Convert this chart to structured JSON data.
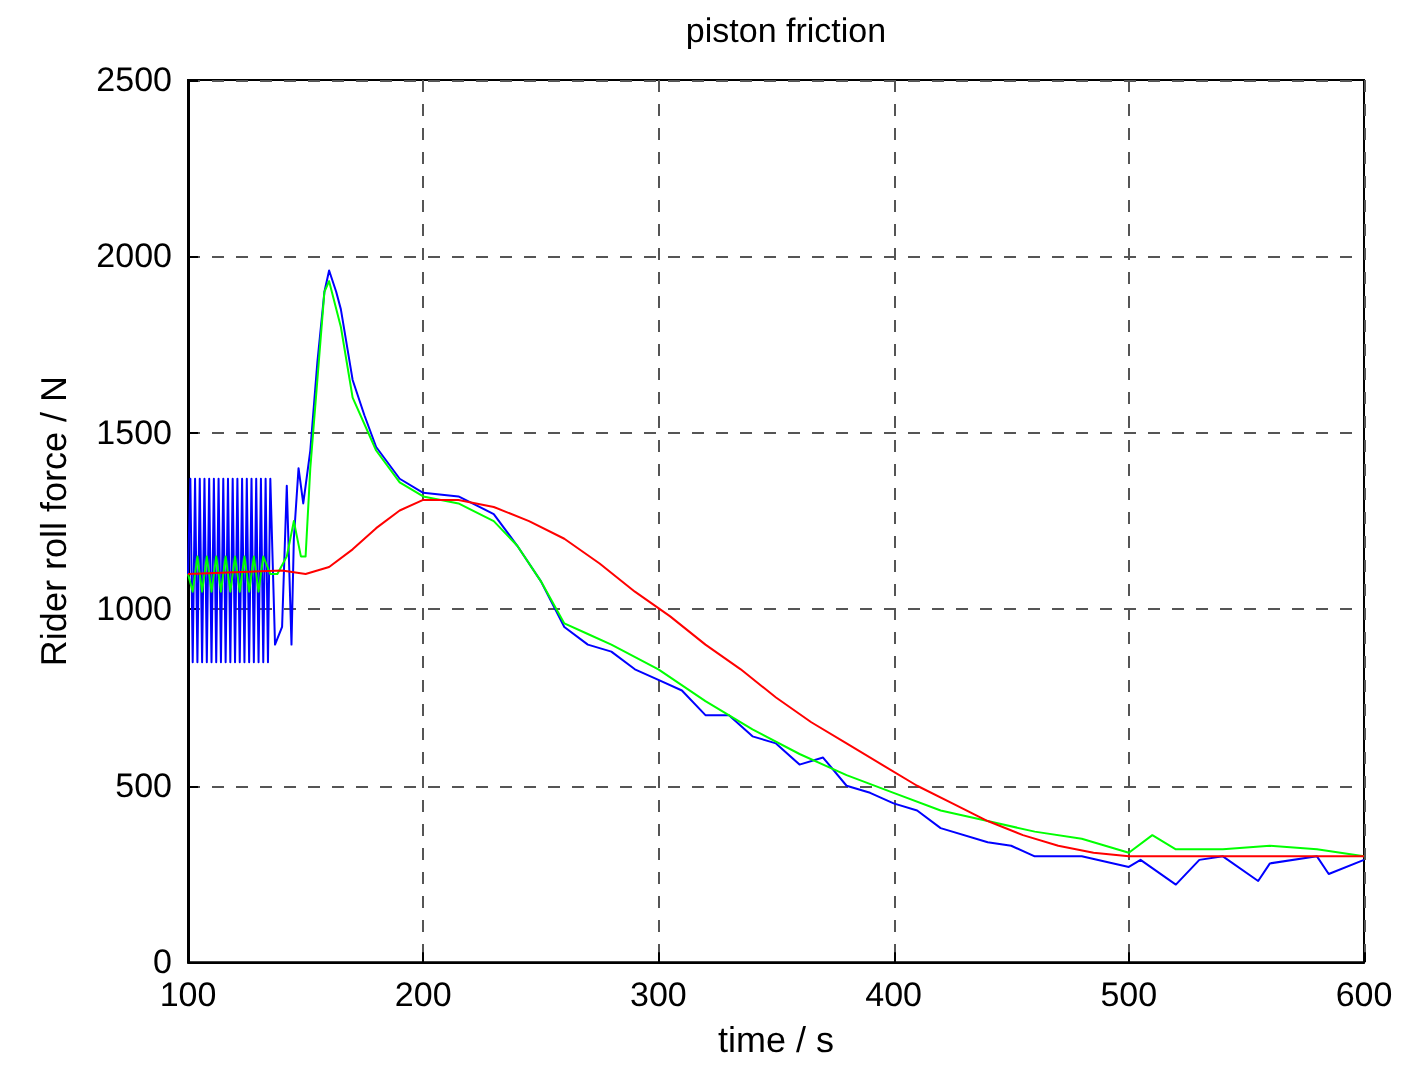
{
  "chart_data": {
    "type": "line",
    "title": "piston friction",
    "xlabel": "time / s",
    "ylabel": "Rider roll force / N",
    "xlim": [
      100,
      600
    ],
    "xticks": [
      100,
      200,
      300,
      400,
      500,
      600
    ],
    "ylim": [
      0,
      2500
    ],
    "yticks": [
      0,
      500,
      1000,
      1500,
      2000,
      2500
    ],
    "grid": true,
    "marker": "none",
    "line_style": "solid",
    "series": [
      {
        "color": "#0000ff",
        "x": [
          100,
          101,
          102,
          103,
          104,
          105,
          106,
          107,
          108,
          109,
          110,
          111,
          112,
          113,
          114,
          115,
          116,
          117,
          118,
          119,
          120,
          121,
          122,
          123,
          124,
          125,
          126,
          127,
          128,
          129,
          130,
          131,
          132,
          133,
          134,
          135,
          137,
          140,
          142,
          144,
          145,
          147,
          149,
          150,
          152,
          155,
          158,
          160,
          163,
          165,
          170,
          175,
          180,
          190,
          200,
          215,
          230,
          240,
          250,
          260,
          270,
          280,
          290,
          300,
          310,
          320,
          330,
          340,
          350,
          360,
          370,
          380,
          390,
          400,
          410,
          420,
          440,
          450,
          460,
          480,
          500,
          505,
          520,
          530,
          540,
          555,
          560,
          580,
          585,
          600
        ],
        "values": [
          1100,
          1370,
          850,
          1370,
          850,
          1370,
          850,
          1370,
          850,
          1370,
          850,
          1370,
          850,
          1370,
          850,
          1370,
          850,
          1370,
          850,
          1370,
          850,
          1370,
          850,
          1370,
          850,
          1370,
          850,
          1370,
          850,
          1370,
          850,
          1370,
          850,
          1370,
          850,
          1370,
          900,
          950,
          1350,
          900,
          1200,
          1400,
          1300,
          1350,
          1450,
          1700,
          1900,
          1960,
          1900,
          1850,
          1650,
          1550,
          1460,
          1370,
          1330,
          1320,
          1270,
          1180,
          1080,
          950,
          900,
          880,
          830,
          800,
          770,
          700,
          700,
          640,
          620,
          560,
          580,
          500,
          480,
          450,
          430,
          380,
          340,
          330,
          300,
          300,
          270,
          290,
          220,
          290,
          300,
          230,
          280,
          300,
          250,
          290
        ]
      },
      {
        "color": "#00ff00",
        "x": [
          100,
          102,
          104,
          106,
          108,
          110,
          112,
          114,
          116,
          118,
          120,
          122,
          124,
          126,
          128,
          130,
          132,
          135,
          138,
          142,
          145,
          148,
          150,
          152,
          155,
          158,
          160,
          165,
          170,
          180,
          190,
          200,
          215,
          230,
          240,
          250,
          260,
          270,
          280,
          300,
          320,
          340,
          360,
          380,
          400,
          420,
          440,
          460,
          480,
          500,
          510,
          520,
          540,
          560,
          580,
          600
        ],
        "values": [
          1100,
          1050,
          1150,
          1050,
          1150,
          1050,
          1150,
          1050,
          1150,
          1050,
          1150,
          1050,
          1150,
          1050,
          1150,
          1050,
          1150,
          1100,
          1100,
          1150,
          1250,
          1150,
          1150,
          1400,
          1650,
          1900,
          1930,
          1800,
          1600,
          1450,
          1360,
          1320,
          1300,
          1250,
          1180,
          1080,
          960,
          930,
          900,
          830,
          740,
          660,
          590,
          530,
          480,
          430,
          400,
          370,
          350,
          310,
          360,
          320,
          320,
          330,
          320,
          300
        ]
      },
      {
        "color": "#ff0000",
        "x": [
          100,
          140,
          150,
          160,
          170,
          180,
          190,
          200,
          215,
          230,
          245,
          260,
          275,
          290,
          305,
          320,
          335,
          350,
          365,
          380,
          395,
          410,
          425,
          440,
          455,
          470,
          485,
          500,
          550,
          600
        ],
        "values": [
          1100,
          1110,
          1100,
          1120,
          1170,
          1230,
          1280,
          1310,
          1310,
          1290,
          1250,
          1200,
          1130,
          1050,
          980,
          900,
          830,
          750,
          680,
          620,
          560,
          500,
          450,
          400,
          360,
          330,
          310,
          300,
          300,
          300
        ]
      }
    ]
  }
}
